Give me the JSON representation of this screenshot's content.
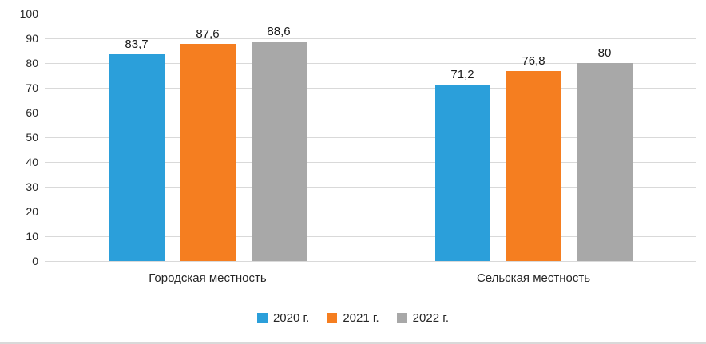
{
  "chart_data": {
    "type": "bar",
    "title": "",
    "categories": [
      "Городская местность",
      "Сельская местность"
    ],
    "series": [
      {
        "name": "2020 г.",
        "color": "#2B9FDA",
        "values": [
          83.7,
          71.2
        ],
        "labels": [
          "83,7",
          "71,2"
        ]
      },
      {
        "name": "2021 г.",
        "color": "#F57E20",
        "values": [
          87.6,
          76.8
        ],
        "labels": [
          "87,6",
          "76,8"
        ]
      },
      {
        "name": "2022 г.",
        "color": "#A8A8A8",
        "values": [
          88.6,
          80
        ],
        "labels": [
          "88,6",
          "80"
        ]
      }
    ],
    "xlabel": "",
    "ylabel": "",
    "ylim": [
      0,
      100
    ],
    "ytick_step": 10,
    "yticks": [
      0,
      10,
      20,
      30,
      40,
      50,
      60,
      70,
      80,
      90,
      100
    ],
    "grid": true,
    "legend_position": "bottom"
  },
  "colors": {
    "gridline": "#D9D9D9",
    "text": "#262626"
  }
}
